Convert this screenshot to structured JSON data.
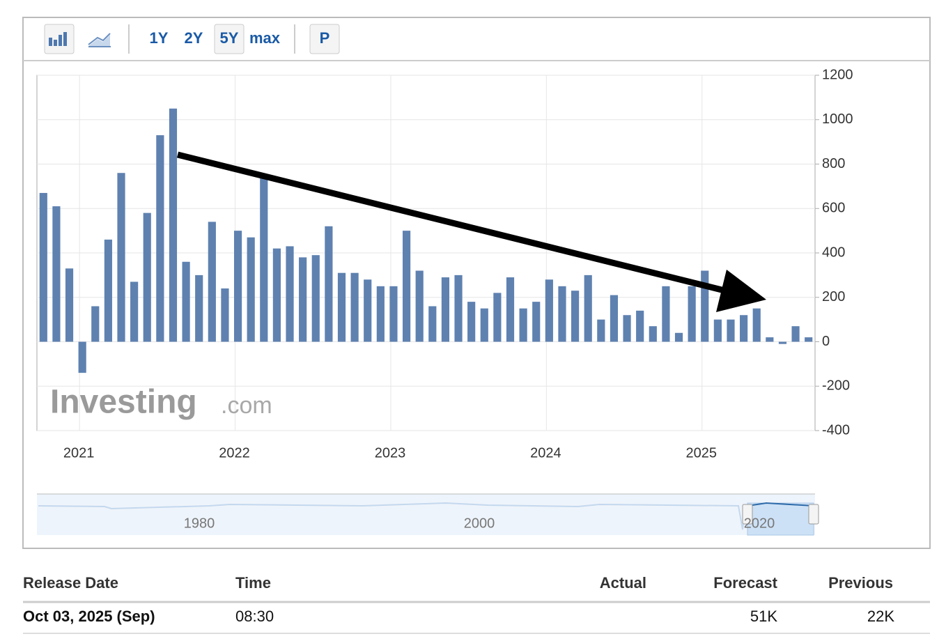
{
  "toolbar": {
    "ranges": [
      "1Y",
      "2Y",
      "5Y",
      "max"
    ],
    "selected_range": 2,
    "pattern_button": "P"
  },
  "chart_data": {
    "type": "bar",
    "categories": [
      null,
      null,
      null,
      "2021",
      null,
      null,
      null,
      null,
      null,
      null,
      null,
      null,
      null,
      null,
      null,
      "2022",
      null,
      null,
      null,
      null,
      null,
      null,
      null,
      null,
      null,
      null,
      null,
      "2023",
      null,
      null,
      null,
      null,
      null,
      null,
      null,
      null,
      null,
      null,
      null,
      "2024",
      null,
      null,
      null,
      null,
      null,
      null,
      null,
      null,
      null,
      null,
      null,
      "2025",
      null,
      null,
      null,
      null,
      null,
      null,
      null,
      null
    ],
    "values": [
      670,
      610,
      330,
      -140,
      160,
      460,
      760,
      270,
      580,
      930,
      1050,
      360,
      300,
      540,
      240,
      500,
      470,
      740,
      420,
      430,
      380,
      390,
      520,
      310,
      310,
      280,
      250,
      250,
      500,
      320,
      160,
      290,
      300,
      180,
      150,
      220,
      290,
      150,
      180,
      280,
      250,
      230,
      300,
      100,
      210,
      120,
      140,
      70,
      250,
      40,
      250,
      320,
      100,
      100,
      120,
      150,
      20,
      -10,
      70,
      20
    ],
    "color": "#5e81b0",
    "ylim": [
      -400,
      1200
    ],
    "yticks": [
      -400,
      -200,
      0,
      200,
      400,
      600,
      800,
      1000,
      1200
    ],
    "grid": true,
    "y_axis_position": "right",
    "watermark": [
      "Investing",
      ".com"
    ]
  },
  "navigator": {
    "labels": [
      "1980",
      "2000",
      "2020"
    ]
  },
  "table": {
    "headers": [
      "Release Date",
      "Time",
      "Actual",
      "Forecast",
      "Previous"
    ],
    "rows": [
      {
        "release_date": "Oct 03, 2025 (Sep)",
        "time": "08:30",
        "forecast": "51K",
        "previous": "22K"
      }
    ]
  }
}
